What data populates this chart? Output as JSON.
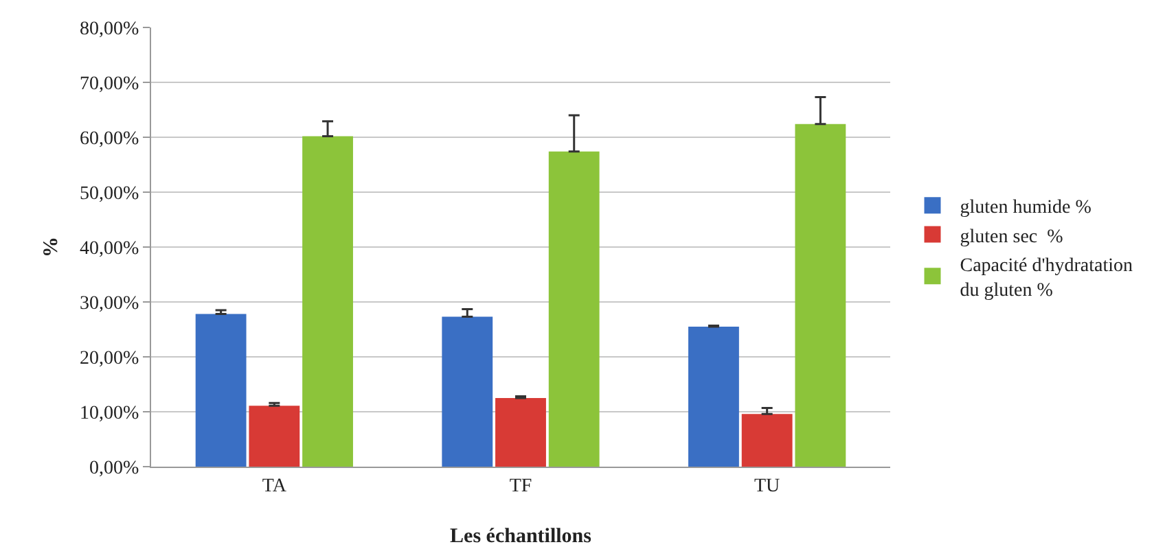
{
  "chart_data": {
    "type": "bar",
    "xlabel": "Les échantillons",
    "ylabel": "%",
    "categories": [
      "TA",
      "TF",
      "TU"
    ],
    "series": [
      {
        "name": "gluten humide %",
        "color": "#3a6fc4",
        "values": [
          27.8,
          27.3,
          25.5
        ],
        "errors": [
          [
            27.8,
            28.5
          ],
          [
            27.3,
            28.7
          ],
          [
            25.5,
            25.7
          ]
        ]
      },
      {
        "name": "gluten sec  %",
        "color": "#d83a35",
        "values": [
          11.1,
          12.5,
          9.6
        ],
        "errors": [
          [
            11.1,
            11.6
          ],
          [
            12.5,
            12.8
          ],
          [
            9.6,
            10.7
          ]
        ]
      },
      {
        "name": "Capacité d'hydratation du gluten %",
        "color": "#8cc43a",
        "values": [
          60.2,
          57.4,
          62.4
        ],
        "errors": [
          [
            60.2,
            62.9
          ],
          [
            57.4,
            64.0
          ],
          [
            62.4,
            67.3
          ]
        ]
      }
    ],
    "ylim": [
      0,
      80
    ],
    "yticks": [
      {
        "value": 0,
        "label": "0,00%"
      },
      {
        "value": 10,
        "label": "10,00%"
      },
      {
        "value": 20,
        "label": "20,00%"
      },
      {
        "value": 30,
        "label": "30,00%"
      },
      {
        "value": 40,
        "label": "40,00%"
      },
      {
        "value": 50,
        "label": "50,00%"
      },
      {
        "value": 60,
        "label": "60,00%"
      },
      {
        "value": 70,
        "label": "70,00%"
      },
      {
        "value": 80,
        "label": "80,00%"
      }
    ],
    "grid": "y",
    "legend": "right"
  }
}
